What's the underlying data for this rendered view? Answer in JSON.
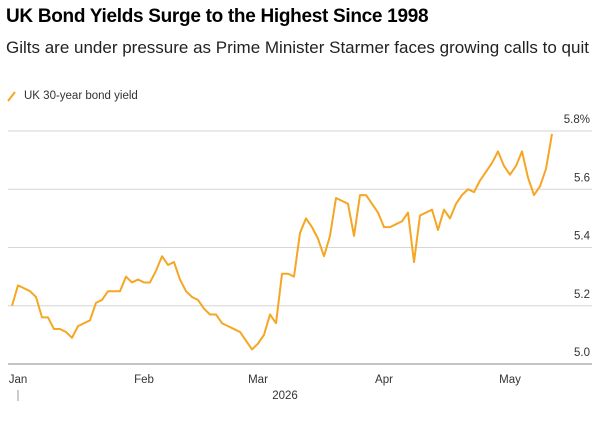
{
  "chart_data": {
    "type": "line",
    "title": "UK Bond Yields Surge to the Highest Since 1998",
    "subtitle": "Gilts are under pressure as Prime Minister Starmer faces growing calls to quit",
    "x_year_label": "2026",
    "categories": [
      null,
      "Jan",
      null,
      null,
      null,
      null,
      null,
      null,
      null,
      null,
      null,
      null,
      null,
      null,
      null,
      null,
      null,
      null,
      null,
      null,
      null,
      null,
      "Feb",
      null,
      null,
      null,
      null,
      null,
      null,
      null,
      null,
      null,
      null,
      null,
      null,
      null,
      null,
      null,
      null,
      null,
      null,
      "Mar",
      null,
      null,
      null,
      null,
      null,
      null,
      null,
      null,
      null,
      null,
      null,
      null,
      null,
      null,
      null,
      null,
      null,
      null,
      null,
      null,
      "Apr",
      null,
      null,
      null,
      null,
      null,
      null,
      null,
      null,
      null,
      null,
      null,
      null,
      null,
      null,
      null,
      null,
      null,
      null,
      null,
      null,
      "May",
      null,
      null,
      null,
      null,
      null,
      null,
      null
    ],
    "series": [
      {
        "name": "UK 30-year bond yield",
        "color": "#f5a623",
        "values": [
          5.2,
          5.27,
          5.26,
          5.25,
          5.23,
          5.16,
          5.16,
          5.12,
          5.12,
          5.11,
          5.09,
          5.13,
          5.14,
          5.15,
          5.21,
          5.22,
          5.25,
          5.25,
          5.25,
          5.3,
          5.28,
          5.29,
          5.28,
          5.28,
          5.32,
          5.37,
          5.34,
          5.35,
          5.29,
          5.25,
          5.23,
          5.22,
          5.19,
          5.17,
          5.17,
          5.14,
          5.13,
          5.12,
          5.11,
          5.08,
          5.05,
          5.07,
          5.1,
          5.17,
          5.14,
          5.31,
          5.31,
          5.3,
          5.45,
          5.5,
          5.47,
          5.43,
          5.37,
          5.44,
          5.57,
          5.56,
          5.55,
          5.44,
          5.58,
          5.58,
          5.55,
          5.52,
          5.47,
          5.47,
          5.48,
          5.49,
          5.52,
          5.35,
          5.51,
          5.52,
          5.53,
          5.46,
          5.53,
          5.5,
          5.55,
          5.58,
          5.6,
          5.59,
          5.63,
          5.66,
          5.69,
          5.73,
          5.68,
          5.65,
          5.68,
          5.73,
          5.64,
          5.58,
          5.61,
          5.67,
          5.79
        ]
      }
    ],
    "ylim": [
      5.0,
      5.84
    ],
    "yticks": [
      {
        "value": 5.0,
        "label": "5.0"
      },
      5.2,
      5.4,
      5.6,
      {
        "value": 5.8,
        "label": "5.8%"
      }
    ],
    "grid": true
  }
}
